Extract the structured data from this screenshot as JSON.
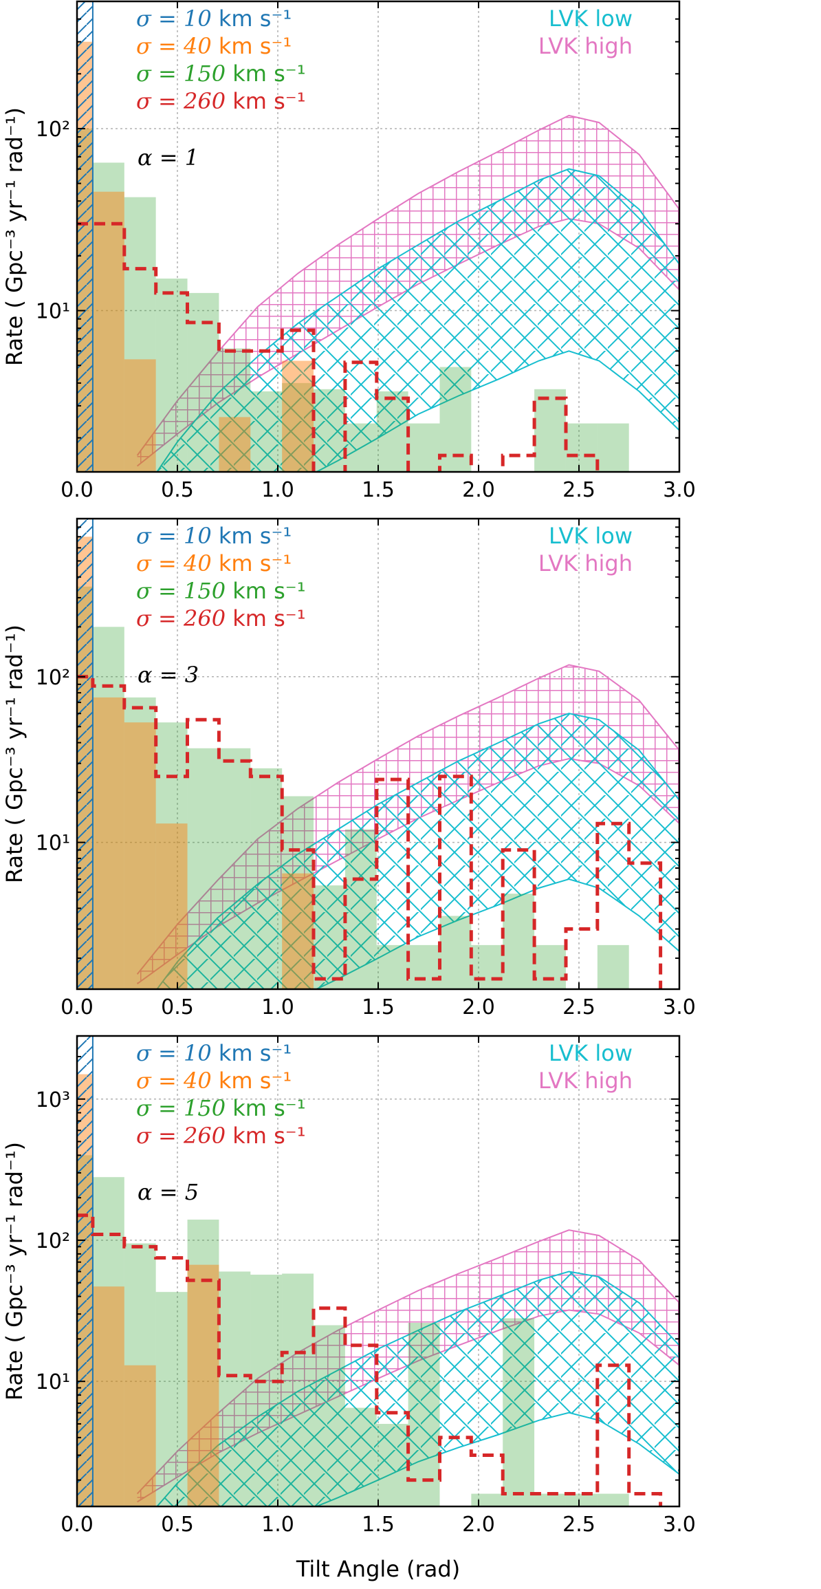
{
  "figure": {
    "xlabel": "Tilt Angle (rad)",
    "ylabel": "Rate ( Gpc⁻³ yr⁻¹ rad⁻¹)"
  },
  "colors": {
    "s10": "#1f77b4",
    "s40": "#ff7f0e",
    "s150": "#2ca02c",
    "s260": "#d62728",
    "lvk_low": "#17becf",
    "lvk_high": "#e377c2"
  },
  "chart_data": [
    {
      "type": "bar",
      "title": "",
      "annotation": "α = 1",
      "xlabel": "Tilt Angle (rad)",
      "ylabel": "Rate ( Gpc⁻³ yr⁻¹ rad⁻¹)",
      "xlim": [
        0.0,
        3.0
      ],
      "ylim": [
        1.3,
        500
      ],
      "yscale": "log",
      "bin_edges": [
        0,
        0.0785,
        0.2356,
        0.3927,
        0.5498,
        0.7069,
        0.864,
        1.0211,
        1.1781,
        1.3352,
        1.4923,
        1.6494,
        1.8065,
        1.9635,
        2.1206,
        2.2777,
        2.4348,
        2.5919,
        2.749,
        2.9061
      ],
      "xticks": [
        "0.0",
        "0.5",
        "1.0",
        "1.5",
        "2.0",
        "2.5",
        "3.0"
      ],
      "yticks": [
        {
          "value": 10,
          "label": "10¹"
        },
        {
          "value": 100,
          "label": "10²"
        }
      ],
      "legend": [
        {
          "name": "σ = 10 km s⁻¹",
          "math": "σ = 10",
          "unit": "km s⁻¹",
          "color_key": "s10"
        },
        {
          "name": "σ = 40 km s⁻¹",
          "math": "σ = 40",
          "unit": "km s⁻¹",
          "color_key": "s40"
        },
        {
          "name": "σ = 150 km s⁻¹",
          "math": "σ = 150",
          "unit": "km s⁻¹",
          "color_key": "s150"
        },
        {
          "name": "σ = 260 km s⁻¹",
          "math": "σ = 260",
          "unit": "km s⁻¹",
          "color_key": "s260"
        },
        {
          "name": "LVK low",
          "color_key": "lvk_low"
        },
        {
          "name": "LVK high",
          "color_key": "lvk_high"
        }
      ],
      "series": [
        {
          "name": "σ = 10 km s⁻¹",
          "style": "hatched-bar",
          "values": [
            900,
            0,
            0,
            0,
            0,
            0,
            0,
            0,
            0,
            0,
            0,
            0,
            0,
            0,
            0,
            0,
            0,
            0,
            0
          ]
        },
        {
          "name": "σ = 40 km s⁻¹",
          "style": "filled-bar",
          "values": [
            300,
            45,
            5.4,
            0,
            0,
            2.6,
            0,
            5.3,
            0,
            0,
            0,
            0,
            0,
            0,
            0,
            0,
            0,
            0,
            0
          ]
        },
        {
          "name": "σ = 150 km s⁻¹",
          "style": "filled-bar",
          "values": [
            100,
            65,
            42,
            15,
            12.5,
            6.2,
            3.6,
            4.0,
            3.7,
            2.4,
            3.6,
            2.4,
            4.9,
            0,
            0,
            3.7,
            2.4,
            2.4,
            0
          ]
        },
        {
          "name": "σ = 260 km s⁻¹",
          "style": "dashed-step",
          "values": [
            30,
            30,
            17,
            12.5,
            8.6,
            6.0,
            6.0,
            7.8,
            0,
            5.2,
            3.3,
            0,
            1.6,
            0,
            1.6,
            3.3,
            1.6,
            0,
            0
          ]
        },
        {
          "name": "LVK low",
          "style": "hatched-band",
          "x": [
            0.3,
            0.5,
            0.7,
            0.9,
            1.1,
            1.3,
            1.5,
            1.7,
            1.9,
            2.1,
            2.3,
            2.45,
            2.6,
            2.8,
            3.0
          ],
          "lower": [
            0.15,
            0.3,
            0.55,
            0.85,
            1.15,
            1.5,
            2.0,
            2.7,
            3.4,
            4.2,
            5.3,
            6.0,
            5.3,
            3.6,
            2.2
          ],
          "upper": [
            0.9,
            1.9,
            3.5,
            5.6,
            8.5,
            12,
            17,
            23,
            31,
            40,
            52,
            60,
            55,
            36,
            18
          ]
        },
        {
          "name": "LVK high",
          "style": "hatched-band",
          "x": [
            0.3,
            0.5,
            0.7,
            0.9,
            1.1,
            1.3,
            1.5,
            1.7,
            1.9,
            2.1,
            2.3,
            2.45,
            2.6,
            2.8,
            3.0
          ],
          "lower": [
            1.4,
            2.1,
            3.1,
            4.3,
            5.8,
            7.8,
            10.5,
            14,
            18,
            23,
            29,
            32,
            30,
            22,
            13
          ],
          "upper": [
            1.6,
            3.2,
            5.9,
            10.5,
            16,
            23,
            32,
            44,
            58,
            75,
            98,
            118,
            108,
            72,
            36
          ]
        }
      ]
    },
    {
      "type": "bar",
      "title": "",
      "annotation": "α = 3",
      "xlabel": "Tilt Angle (rad)",
      "ylabel": "Rate ( Gpc⁻³ yr⁻¹ rad⁻¹)",
      "xlim": [
        0.0,
        3.0
      ],
      "ylim": [
        1.3,
        900
      ],
      "yscale": "log",
      "bin_edges": [
        0,
        0.0785,
        0.2356,
        0.3927,
        0.5498,
        0.7069,
        0.864,
        1.0211,
        1.1781,
        1.3352,
        1.4923,
        1.6494,
        1.8065,
        1.9635,
        2.1206,
        2.2777,
        2.4348,
        2.5919,
        2.749,
        2.9061
      ],
      "xticks": [
        "0.0",
        "0.5",
        "1.0",
        "1.5",
        "2.0",
        "2.5",
        "3.0"
      ],
      "yticks": [
        {
          "value": 10,
          "label": "10¹"
        },
        {
          "value": 100,
          "label": "10²"
        }
      ],
      "legend": [
        {
          "name": "σ = 10 km s⁻¹",
          "math": "σ = 10",
          "unit": "km s⁻¹",
          "color_key": "s10"
        },
        {
          "name": "σ = 40 km s⁻¹",
          "math": "σ = 40",
          "unit": "km s⁻¹",
          "color_key": "s40"
        },
        {
          "name": "σ = 150 km s⁻¹",
          "math": "σ = 150",
          "unit": "km s⁻¹",
          "color_key": "s150"
        },
        {
          "name": "σ = 260 km s⁻¹",
          "math": "σ = 260",
          "unit": "km s⁻¹",
          "color_key": "s260"
        },
        {
          "name": "LVK low",
          "color_key": "lvk_low"
        },
        {
          "name": "LVK high",
          "color_key": "lvk_high"
        }
      ],
      "series": [
        {
          "name": "σ = 10 km s⁻¹",
          "style": "hatched-bar",
          "values": [
            1500,
            0,
            0,
            0,
            0,
            0,
            0,
            0,
            0,
            0,
            0,
            0,
            0,
            0,
            0,
            0,
            0,
            0,
            0
          ]
        },
        {
          "name": "σ = 40 km s⁻¹",
          "style": "filled-bar",
          "values": [
            700,
            75,
            53,
            13,
            0,
            0,
            0,
            6.5,
            0,
            0,
            0,
            0,
            0,
            0,
            0,
            0,
            0,
            0,
            0
          ]
        },
        {
          "name": "σ = 150 km s⁻¹",
          "style": "filled-bar",
          "values": [
            350,
            200,
            75,
            53,
            37,
            37,
            28,
            19,
            5.5,
            12,
            2.4,
            2.4,
            3.6,
            2.4,
            4.9,
            2.4,
            0,
            2.4,
            0
          ]
        },
        {
          "name": "σ = 260 km s⁻¹",
          "style": "dashed-step",
          "values": [
            100,
            88,
            65,
            25,
            55,
            31,
            25,
            9,
            1.5,
            6,
            24,
            1.5,
            25,
            1.5,
            9,
            1.5,
            3,
            13,
            7.5
          ]
        },
        {
          "name": "LVK low",
          "style": "hatched-band",
          "x": [
            0.3,
            0.5,
            0.7,
            0.9,
            1.1,
            1.3,
            1.5,
            1.7,
            1.9,
            2.1,
            2.3,
            2.45,
            2.6,
            2.8,
            3.0
          ],
          "lower": [
            0.15,
            0.3,
            0.55,
            0.85,
            1.15,
            1.5,
            2.0,
            2.7,
            3.4,
            4.2,
            5.3,
            6.0,
            5.3,
            3.6,
            2.2
          ],
          "upper": [
            0.9,
            1.9,
            3.5,
            5.6,
            8.5,
            12,
            17,
            23,
            31,
            40,
            52,
            60,
            55,
            36,
            18
          ]
        },
        {
          "name": "LVK high",
          "style": "hatched-band",
          "x": [
            0.3,
            0.5,
            0.7,
            0.9,
            1.1,
            1.3,
            1.5,
            1.7,
            1.9,
            2.1,
            2.3,
            2.45,
            2.6,
            2.8,
            3.0
          ],
          "lower": [
            1.4,
            2.1,
            3.1,
            4.3,
            5.8,
            7.8,
            10.5,
            14,
            18,
            23,
            29,
            32,
            30,
            22,
            13
          ],
          "upper": [
            1.6,
            3.2,
            5.9,
            10.5,
            16,
            23,
            32,
            44,
            58,
            75,
            98,
            118,
            108,
            72,
            36
          ]
        }
      ]
    },
    {
      "type": "bar",
      "title": "",
      "annotation": "α = 5",
      "xlabel": "Tilt Angle (rad)",
      "ylabel": "Rate ( Gpc⁻³ yr⁻¹ rad⁻¹)",
      "xlim": [
        0.0,
        3.0
      ],
      "ylim": [
        1.3,
        2800
      ],
      "yscale": "log",
      "bin_edges": [
        0,
        0.0785,
        0.2356,
        0.3927,
        0.5498,
        0.7069,
        0.864,
        1.0211,
        1.1781,
        1.3352,
        1.4923,
        1.6494,
        1.8065,
        1.9635,
        2.1206,
        2.2777,
        2.4348,
        2.5919,
        2.749,
        2.9061
      ],
      "xticks": [
        "0.0",
        "0.5",
        "1.0",
        "1.5",
        "2.0",
        "2.5",
        "3.0"
      ],
      "yticks": [
        {
          "value": 10,
          "label": "10¹"
        },
        {
          "value": 100,
          "label": "10²"
        },
        {
          "value": 1000,
          "label": "10³"
        }
      ],
      "legend": [
        {
          "name": "σ = 10 km s⁻¹",
          "math": "σ = 10",
          "unit": "km s⁻¹",
          "color_key": "s10"
        },
        {
          "name": "σ = 40 km s⁻¹",
          "math": "σ = 40",
          "unit": "km s⁻¹",
          "color_key": "s40"
        },
        {
          "name": "σ = 150 km s⁻¹",
          "math": "σ = 150",
          "unit": "km s⁻¹",
          "color_key": "s150"
        },
        {
          "name": "σ = 260 km s⁻¹",
          "math": "σ = 260",
          "unit": "km s⁻¹",
          "color_key": "s260"
        },
        {
          "name": "LVK low",
          "color_key": "lvk_low"
        },
        {
          "name": "LVK high",
          "color_key": "lvk_high"
        }
      ],
      "series": [
        {
          "name": "σ = 10 km s⁻¹",
          "style": "hatched-bar",
          "values": [
            5000,
            0,
            0,
            0,
            0,
            0,
            0,
            0,
            0,
            0,
            0,
            0,
            0,
            0,
            0,
            0,
            0,
            0,
            0
          ]
        },
        {
          "name": "σ = 40 km s⁻¹",
          "style": "filled-bar",
          "values": [
            1500,
            47,
            13,
            0,
            67,
            0,
            0,
            0,
            0,
            0,
            0,
            0,
            0,
            0,
            0,
            0,
            0,
            0,
            0
          ]
        },
        {
          "name": "σ = 150 km s⁻¹",
          "style": "filled-bar",
          "values": [
            400,
            280,
            95,
            43,
            140,
            60,
            57,
            58,
            25,
            6.5,
            5,
            26,
            0,
            1.6,
            28,
            1.6,
            1.6,
            1.6,
            0
          ]
        },
        {
          "name": "σ = 260 km s⁻¹",
          "style": "dashed-step",
          "values": [
            150,
            110,
            90,
            75,
            52,
            11,
            10,
            16,
            33,
            18,
            6,
            2,
            4,
            3,
            1.6,
            1.6,
            1.6,
            13,
            1.6
          ]
        },
        {
          "name": "LVK low",
          "style": "hatched-band",
          "x": [
            0.3,
            0.5,
            0.7,
            0.9,
            1.1,
            1.3,
            1.5,
            1.7,
            1.9,
            2.1,
            2.3,
            2.45,
            2.6,
            2.8,
            3.0
          ],
          "lower": [
            0.15,
            0.3,
            0.55,
            0.85,
            1.15,
            1.5,
            2.0,
            2.7,
            3.4,
            4.2,
            5.3,
            6.0,
            5.3,
            3.6,
            2.2
          ],
          "upper": [
            0.9,
            1.9,
            3.5,
            5.6,
            8.5,
            12,
            17,
            23,
            31,
            40,
            52,
            60,
            55,
            36,
            18
          ]
        },
        {
          "name": "LVK high",
          "style": "hatched-band",
          "x": [
            0.3,
            0.5,
            0.7,
            0.9,
            1.1,
            1.3,
            1.5,
            1.7,
            1.9,
            2.1,
            2.3,
            2.45,
            2.6,
            2.8,
            3.0
          ],
          "lower": [
            1.4,
            2.1,
            3.1,
            4.3,
            5.8,
            7.8,
            10.5,
            14,
            18,
            23,
            29,
            32,
            30,
            22,
            13
          ],
          "upper": [
            1.6,
            3.2,
            5.9,
            10.5,
            16,
            23,
            32,
            44,
            58,
            75,
            98,
            118,
            108,
            72,
            36
          ]
        }
      ]
    }
  ]
}
